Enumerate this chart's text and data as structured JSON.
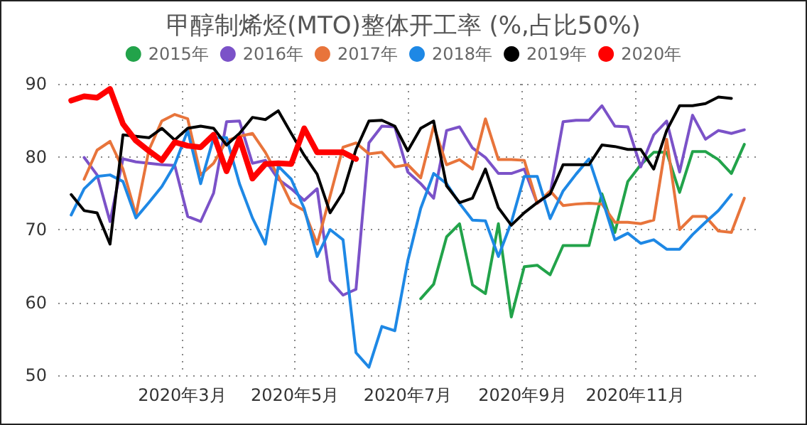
{
  "chart_data": {
    "type": "line",
    "title": "甲醇制烯烃(MTO)整体开工率 (%,占比50%)",
    "x": [
      "2020-01-01",
      "2020-01-08",
      "2020-01-15",
      "2020-01-22",
      "2020-01-29",
      "2020-02-05",
      "2020-02-12",
      "2020-02-19",
      "2020-02-26",
      "2020-03-04",
      "2020-03-11",
      "2020-03-18",
      "2020-03-25",
      "2020-04-01",
      "2020-04-08",
      "2020-04-15",
      "2020-04-22",
      "2020-04-29",
      "2020-05-06",
      "2020-05-13",
      "2020-05-20",
      "2020-05-27",
      "2020-06-03",
      "2020-06-10",
      "2020-06-17",
      "2020-06-24",
      "2020-07-01",
      "2020-07-08",
      "2020-07-15",
      "2020-07-22",
      "2020-07-29",
      "2020-08-05",
      "2020-08-12",
      "2020-08-19",
      "2020-08-26",
      "2020-09-02",
      "2020-09-09",
      "2020-09-16",
      "2020-09-23",
      "2020-09-30",
      "2020-10-07",
      "2020-10-14",
      "2020-10-21",
      "2020-10-28",
      "2020-11-04",
      "2020-11-11",
      "2020-11-18",
      "2020-11-25",
      "2020-12-02",
      "2020-12-09",
      "2020-12-16",
      "2020-12-23",
      "2020-12-30"
    ],
    "series": [
      {
        "name": "2015年",
        "color": "#22a34a",
        "values": [
          null,
          null,
          null,
          null,
          null,
          null,
          null,
          null,
          null,
          null,
          null,
          null,
          null,
          null,
          null,
          null,
          null,
          null,
          null,
          null,
          null,
          null,
          null,
          null,
          null,
          null,
          null,
          60.5,
          62.5,
          69,
          70.8,
          62.4,
          61.2,
          70.8,
          58,
          64.9,
          65.1,
          63.8,
          67.8,
          67.8,
          67.8,
          74.9,
          69.6,
          76.6,
          78.9,
          80.6,
          80.6,
          75.1,
          80.7,
          80.7,
          79.6,
          77.7,
          81.7
        ]
      },
      {
        "name": "2016年",
        "color": "#7b52c8",
        "values": [
          null,
          79.9,
          77.5,
          71.1,
          79.7,
          79.3,
          79.1,
          78.9,
          78.8,
          71.8,
          71.1,
          75,
          84.8,
          84.9,
          79.1,
          79.5,
          76.9,
          75.6,
          74,
          75.6,
          63,
          61,
          61.8,
          81.9,
          84.2,
          84.1,
          77.9,
          76.3,
          74.3,
          83.6,
          84.1,
          81.2,
          79.9,
          77.7,
          77.7,
          78.3,
          73.6,
          74.9,
          84.8,
          85,
          85,
          87,
          84.2,
          84.1,
          78.6,
          83,
          84.9,
          77.9,
          85.7,
          82.4,
          83.6,
          83.2,
          83.7
        ]
      },
      {
        "name": "2017年",
        "color": "#e8743b",
        "values": [
          null,
          76.9,
          80.9,
          82.1,
          78.3,
          72,
          80.9,
          84.9,
          85.8,
          85.2,
          77.5,
          79.1,
          82.2,
          82.8,
          83.2,
          80.6,
          77.3,
          73.6,
          72.6,
          68,
          74.6,
          81.3,
          81.9,
          80.4,
          80.6,
          78.6,
          78.9,
          77.1,
          84.2,
          78.9,
          79.6,
          78.3,
          85.2,
          79.6,
          79.6,
          79.5,
          73.6,
          75.3,
          73.3,
          73.5,
          73.6,
          73.5,
          71,
          71,
          70.8,
          71.3,
          82.4,
          70,
          71.8,
          71.8,
          69.8,
          69.6,
          74.3
        ]
      },
      {
        "name": "2018年",
        "color": "#1e88e5",
        "values": [
          72,
          75.6,
          77.3,
          77.5,
          76.6,
          71.6,
          73.7,
          75.9,
          78.9,
          83.6,
          76.3,
          82.6,
          82.6,
          76.3,
          71.6,
          68,
          78.7,
          76.9,
          72.9,
          66.3,
          70,
          68.6,
          53.1,
          51.1,
          56.7,
          56.1,
          65.7,
          72.9,
          77.7,
          76.3,
          73.6,
          71.3,
          71.2,
          66.3,
          71,
          77.3,
          77.3,
          71.5,
          75.3,
          77.6,
          79.7,
          74.3,
          68.6,
          69.5,
          68.1,
          68.6,
          67.3,
          67.3,
          69.3,
          71,
          72.6,
          74.8,
          null
        ]
      },
      {
        "name": "2019年",
        "color": "#000000",
        "values": [
          74.8,
          72.6,
          72.3,
          68,
          83,
          82.8,
          82.6,
          83.9,
          82.3,
          83.9,
          84.2,
          83.9,
          81.6,
          83.2,
          85.4,
          85.1,
          86.3,
          83.2,
          80.2,
          77.6,
          72.3,
          75.1,
          81,
          84.9,
          85,
          84.2,
          80.8,
          83.9,
          84.9,
          76,
          73.7,
          74.3,
          78.3,
          73,
          70.6,
          72.3,
          73.7,
          74.9,
          78.9,
          78.9,
          78.9,
          81.6,
          81.4,
          81,
          81,
          78.3,
          83.6,
          87,
          87,
          87.3,
          88.2,
          88,
          null
        ]
      },
      {
        "name": "2020年",
        "color": "#ff0000",
        "values": [
          87.7,
          88.3,
          88.1,
          89.3,
          84.5,
          82.2,
          80.8,
          79.5,
          82,
          81.5,
          81.3,
          83,
          78,
          82.5,
          77,
          79,
          79.1,
          79,
          83.9,
          80.6,
          80.6,
          80.6,
          79.7,
          null,
          null,
          null,
          null,
          null,
          null,
          null,
          null,
          null,
          null,
          null,
          null,
          null,
          null,
          null,
          null,
          null,
          null,
          null,
          null,
          null,
          null,
          null,
          null,
          null,
          null,
          null,
          null,
          null,
          null
        ]
      }
    ],
    "xlim": [
      "2019-12-25",
      "2021-01-06"
    ],
    "xticks": [
      {
        "value": "2020-03-01",
        "label": "2020年3月"
      },
      {
        "value": "2020-05-01",
        "label": "2020年5月"
      },
      {
        "value": "2020-07-01",
        "label": "2020年7月"
      },
      {
        "value": "2020-09-01",
        "label": "2020年9月"
      },
      {
        "value": "2020-11-01",
        "label": "2020年11月"
      }
    ],
    "ylim": [
      50,
      90
    ],
    "yticks": [
      50,
      60,
      70,
      80,
      90
    ],
    "grid": true,
    "legend": "top",
    "marker": "none",
    "line_style": "solid"
  }
}
